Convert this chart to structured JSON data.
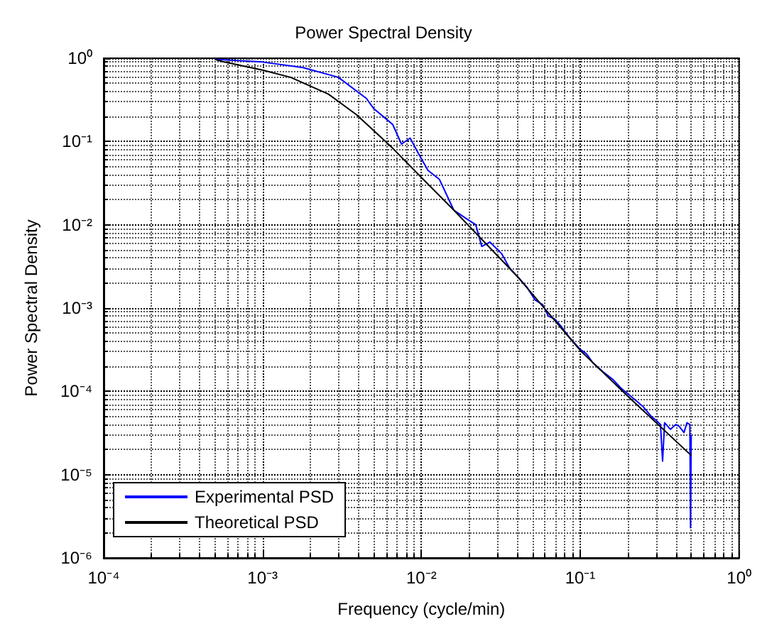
{
  "chart_data": {
    "type": "line",
    "title": "Power Spectral Density",
    "xlabel": "Frequency (cycle/min)",
    "ylabel": "Power Spectral Density",
    "log": "xy",
    "grid": true,
    "legend": "bottom left",
    "line_style": "solid",
    "marker": "none",
    "xlim": [
      0.0001,
      1
    ],
    "ylim": [
      1e-06,
      1
    ],
    "xticks": [
      {
        "value": 0.0001,
        "label": "10⁻⁴"
      },
      {
        "value": 0.001,
        "label": "10⁻³"
      },
      {
        "value": 0.01,
        "label": "10⁻²"
      },
      {
        "value": 0.1,
        "label": "10⁻¹"
      },
      {
        "value": 1,
        "label": "10⁰"
      }
    ],
    "yticks": [
      {
        "value": 1e-06,
        "label": "10⁻⁶"
      },
      {
        "value": 1e-05,
        "label": "10⁻⁵"
      },
      {
        "value": 0.0001,
        "label": "10⁻⁴"
      },
      {
        "value": 0.001,
        "label": "10⁻³"
      },
      {
        "value": 0.01,
        "label": "10⁻²"
      },
      {
        "value": 0.1,
        "label": "10⁻¹"
      },
      {
        "value": 1,
        "label": "10⁰"
      }
    ],
    "series": [
      {
        "name": "Experimental PSD",
        "color": "#0000ff",
        "x": [
          0.0005,
          0.001,
          0.0018,
          0.003,
          0.0045,
          0.005,
          0.0066,
          0.0075,
          0.0085,
          0.0095,
          0.011,
          0.013,
          0.016,
          0.019,
          0.022,
          0.024,
          0.027,
          0.032,
          0.036,
          0.041,
          0.046,
          0.052,
          0.058,
          0.063,
          0.069,
          0.076,
          0.085,
          0.1,
          0.11,
          0.12,
          0.14,
          0.16,
          0.18,
          0.2,
          0.22,
          0.25,
          0.28,
          0.3,
          0.32,
          0.33,
          0.34,
          0.37,
          0.4,
          0.42,
          0.45,
          0.47,
          0.49,
          0.495,
          0.5
        ],
        "values": [
          0.97,
          0.9,
          0.77,
          0.59,
          0.33,
          0.25,
          0.16,
          0.093,
          0.11,
          0.074,
          0.045,
          0.035,
          0.015,
          0.012,
          0.01,
          0.0055,
          0.0062,
          0.0045,
          0.003,
          0.0023,
          0.0018,
          0.00125,
          0.0011,
          0.0008,
          0.00074,
          0.0006,
          0.00045,
          0.00032,
          0.00028,
          0.00022,
          0.00017,
          0.00014,
          0.00011,
          9.3e-05,
          8e-05,
          6.5e-05,
          5e-05,
          4.5e-05,
          4e-05,
          1.45e-05,
          4.2e-05,
          3.5e-05,
          4e-05,
          3.8e-05,
          3.2e-05,
          4.2e-05,
          4e-05,
          2.3e-06,
          3e-05
        ]
      },
      {
        "name": "Theoretical PSD",
        "color": "#000000",
        "x": [
          0.0005,
          0.00056,
          0.001,
          0.0015,
          0.0026,
          0.0039,
          0.0066,
          0.01,
          0.016,
          0.041,
          0.1,
          0.2,
          0.5
        ],
        "values": [
          0.97,
          0.91,
          0.72,
          0.59,
          0.37,
          0.21,
          0.083,
          0.037,
          0.015,
          0.0023,
          0.00031,
          8.7e-05,
          1.7e-05
        ]
      }
    ]
  }
}
